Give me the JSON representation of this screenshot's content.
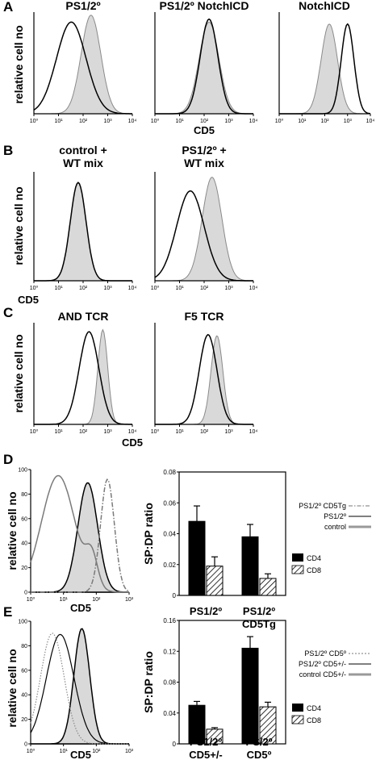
{
  "panel_letters": [
    "A",
    "B",
    "C",
    "D",
    "E"
  ],
  "labels": {
    "relative_cell_no": "relative cell no",
    "cd5": "CD5",
    "sp_dp_ratio": "SP:DP ratio"
  },
  "hist_ticks_A": [
    "10⁰",
    "10¹",
    "10²",
    "10³",
    "10⁴"
  ],
  "y_ticks_D": [
    "0",
    "20",
    "40",
    "60",
    "80",
    "100"
  ],
  "x_ticks_D": [
    "10⁰",
    "10¹",
    "10²",
    "10³"
  ],
  "chart_data": [
    {
      "type": "area",
      "panel": "A",
      "title": "PS1/2º",
      "xlabel": "",
      "x_scale": "log",
      "series": [
        {
          "name": "PS1/2º",
          "peak_cd5": 3,
          "style": "black line"
        },
        {
          "name": "control",
          "peak_cd5": 30,
          "style": "grey filled"
        }
      ]
    },
    {
      "type": "area",
      "panel": "A",
      "title": "PS1/2º NotchICD",
      "xlabel": "CD5",
      "x_scale": "log",
      "series": [
        {
          "name": "PS1/2º NotchICD",
          "peak_cd5": 30,
          "style": "black line"
        },
        {
          "name": "control",
          "peak_cd5": 30,
          "style": "grey filled"
        }
      ]
    },
    {
      "type": "area",
      "panel": "A",
      "title": "NotchICD",
      "xlabel": "",
      "x_scale": "log",
      "series": [
        {
          "name": "NotchICD",
          "peak_cd5": 80,
          "style": "black line"
        },
        {
          "name": "control",
          "peak_cd5": 25,
          "style": "grey filled"
        }
      ]
    },
    {
      "type": "area",
      "panel": "B",
      "title": "control + WT mix",
      "xlabel": "CD5",
      "x_scale": "log",
      "series": [
        {
          "name": "control",
          "peak_cd5": 150,
          "style": "black line"
        },
        {
          "name": "WT",
          "peak_cd5": 150,
          "style": "grey filled"
        }
      ]
    },
    {
      "type": "area",
      "panel": "B",
      "title": "PS1/2º + WT mix",
      "xlabel": "",
      "x_scale": "log",
      "series": [
        {
          "name": "PS1/2º",
          "peak_cd5": 40,
          "style": "black line"
        },
        {
          "name": "WT",
          "peak_cd5": 180,
          "style": "grey filled"
        }
      ]
    },
    {
      "type": "area",
      "panel": "C",
      "title": "AND TCR",
      "xlabel": "CD5",
      "x_scale": "log",
      "series": [
        {
          "name": "PS1/2º",
          "peak_cd5": 300,
          "style": "black line"
        },
        {
          "name": "control",
          "peak_cd5": 800,
          "style": "grey filled"
        }
      ]
    },
    {
      "type": "area",
      "panel": "C",
      "title": "F5 TCR",
      "xlabel": "",
      "x_scale": "log",
      "series": [
        {
          "name": "PS1/2º",
          "peak_cd5": 200,
          "style": "black line"
        },
        {
          "name": "control",
          "peak_cd5": 400,
          "style": "grey filled"
        }
      ]
    },
    {
      "type": "area",
      "panel": "D",
      "xlabel": "CD5",
      "ylabel": "relative cell no",
      "ylim": [
        0,
        100
      ],
      "x_scale": "log",
      "series": [
        {
          "name": "PS1/2º CD5Tg",
          "peak_cd5": 300,
          "style": "grey dash-dot"
        },
        {
          "name": "PS1/2º",
          "peak_cd5": 15,
          "style": "grey line"
        },
        {
          "name": "control",
          "peak_cd5": 130,
          "style": "black line, filled"
        }
      ]
    },
    {
      "type": "bar",
      "panel": "D",
      "ylabel": "SP:DP ratio",
      "ylim": [
        0,
        0.08
      ],
      "y_ticks": [
        "0",
        "0.02",
        "0.04",
        "0.06",
        "0.08"
      ],
      "categories": [
        "PS1/2º",
        "PS1/2º CD5Tg"
      ],
      "category_lines": [
        [
          "PS1/2º"
        ],
        [
          "PS1/2º",
          "CD5Tg"
        ]
      ],
      "series": [
        {
          "name": "CD4",
          "values": [
            0.048,
            0.038
          ],
          "errors": [
            0.01,
            0.008
          ]
        },
        {
          "name": "CD8",
          "values": [
            0.019,
            0.011
          ],
          "errors": [
            0.006,
            0.003
          ]
        }
      ]
    },
    {
      "type": "area",
      "panel": "E",
      "xlabel": "CD5",
      "ylabel": "relative cell no",
      "ylim": [
        0,
        100
      ],
      "x_scale": "log",
      "series": [
        {
          "name": "PS1/2º CD5º",
          "peak_cd5": 3,
          "style": "grey dotted"
        },
        {
          "name": "PS1/2º CD5+/-",
          "peak_cd5": 7,
          "style": "black line"
        },
        {
          "name": "control CD5+/-",
          "peak_cd5": 35,
          "style": "black line, filled"
        }
      ]
    },
    {
      "type": "bar",
      "panel": "E",
      "ylabel": "SP:DP ratio",
      "ylim": [
        0,
        0.16
      ],
      "y_ticks": [
        "0",
        "0.04",
        "0.08",
        "0.12",
        "0.16"
      ],
      "categories": [
        "PS1/2º CD5+/-",
        "PS/2º CD5º"
      ],
      "category_lines": [
        [
          "PS1/2º",
          "CD5+/-"
        ],
        [
          "PS/2º",
          "CD5º"
        ]
      ],
      "series": [
        {
          "name": "CD4",
          "values": [
            0.05,
            0.124
          ],
          "errors": [
            0.005,
            0.015
          ]
        },
        {
          "name": "CD8",
          "values": [
            0.019,
            0.048
          ],
          "errors": [
            0.002,
            0.006
          ]
        }
      ]
    }
  ],
  "legends": {
    "D": [
      "PS1/2º CD5Tg",
      "PS1/2º",
      "control"
    ],
    "E": [
      "PS1/2º CD5º",
      "PS1/2º CD5+/-",
      "control CD5+/-"
    ],
    "bars": [
      "CD4",
      "CD8"
    ]
  }
}
